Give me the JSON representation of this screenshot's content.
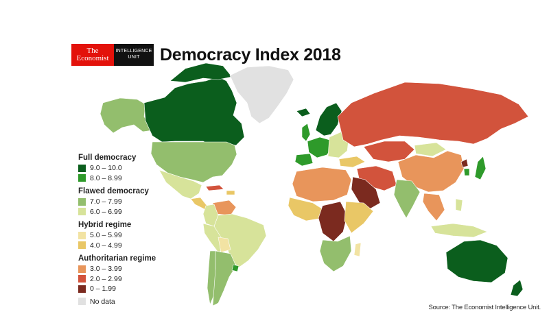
{
  "header": {
    "logo_line1": "The",
    "logo_line2": "Economist",
    "unit_line1": "INTELLIGENCE",
    "unit_line2": "UNIT",
    "title": "Democracy Index 2018"
  },
  "legend": {
    "groups": [
      {
        "title": "Full democracy",
        "items": [
          {
            "label": "9.0 – 10.0",
            "color": "#0b5e1d"
          },
          {
            "label": "8.0 – 8.99",
            "color": "#2e9a2a"
          }
        ]
      },
      {
        "title": "Flawed democracy",
        "items": [
          {
            "label": "7.0 – 7.99",
            "color": "#93be6d"
          },
          {
            "label": "6.0 – 6.99",
            "color": "#d7e39a"
          }
        ]
      },
      {
        "title": "Hybrid regime",
        "items": [
          {
            "label": "5.0 – 5.99",
            "color": "#f2e3a3"
          },
          {
            "label": "4.0 – 4.99",
            "color": "#e9c766"
          }
        ]
      },
      {
        "title": "Authoritarian regime",
        "items": [
          {
            "label": "3.0 – 3.99",
            "color": "#e8955b"
          },
          {
            "label": "2.0 – 2.99",
            "color": "#d2533c"
          },
          {
            "label": "0 – 1.99",
            "color": "#7b2a1f"
          }
        ]
      }
    ],
    "no_data": {
      "label": "No data",
      "color": "#e1e1e1"
    }
  },
  "source": "Source: The Economist Intelligence Unit."
}
